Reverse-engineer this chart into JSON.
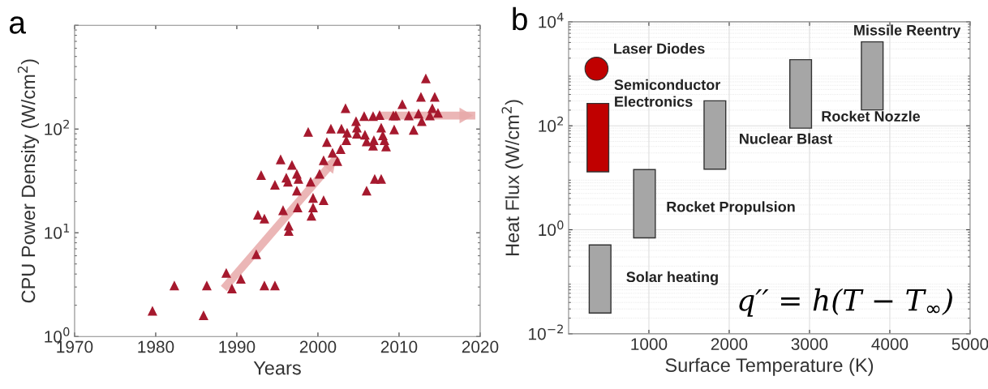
{
  "chart_data": [
    {
      "type": "scatter",
      "title": "a",
      "xlabel": "Years",
      "ylabel": "CPU Power Density (W/cm$^{2}$)",
      "log": "y",
      "grid": false,
      "xlim": [
        1970,
        2020
      ],
      "xticks": [
        1970,
        1980,
        1990,
        2000,
        2010,
        2020
      ],
      "ylim": [
        1,
        1000
      ],
      "yticks": [
        {
          "value": 1,
          "label": "10$^{0}$"
        },
        {
          "value": 10,
          "label": "10$^{1}$"
        },
        {
          "value": 100,
          "label": "10$^{2}$"
        },
        {
          "value": 1000,
          "label": null
        }
      ],
      "series": [
        {
          "marker": "triangle",
          "color": "#a6192e",
          "x": [
            1979.6,
            1982.3,
            1985.9,
            1986.3,
            1988.7,
            1989.4,
            1990.5,
            1992.4,
            1993.4,
            1994.7,
            1992.6,
            1993.4,
            1993.0,
            1994.7,
            1995.4,
            1995.7,
            1996.1,
            1996.3,
            1996.4,
            1996.4,
            1996.8,
            1997.4,
            1997.6,
            1997.4,
            1997.5,
            1998.8,
            1999.1,
            1999.4,
            1999.4,
            1999.2,
            2000.2,
            2000.7,
            2000.7,
            2001.1,
            2001.6,
            2001.8,
            2002.4,
            2002.8,
            2002.9,
            2003.4,
            2003.6,
            2003.5,
            2004.7,
            2004.8,
            2004.8,
            2005.7,
            2005.8,
            2006.0,
            2006.0,
            2006.8,
            2006.9,
            2006.8,
            2007.0,
            2007.6,
            2007.8,
            2008.0,
            2008.2,
            2007.8,
            2008.4,
            2009.3,
            2009.4,
            2009.6,
            2010.4,
            2011.2,
            2011.8,
            2012.4,
            2012.7,
            2012.8,
            2013.3,
            2013.8,
            2014.1,
            2014.4,
            2014.8
          ],
          "values": [
            1.77,
            3.1,
            1.6,
            3.1,
            4.1,
            2.9,
            3.6,
            6.2,
            3.1,
            3.1,
            14.9,
            13.7,
            36,
            29,
            51,
            16.5,
            34,
            31,
            11.7,
            10.4,
            45,
            37,
            33,
            25.5,
            17.5,
            94,
            31,
            21.7,
            17.5,
            14.6,
            37,
            50,
            20.6,
            75,
            101,
            59,
            49,
            64,
            101,
            159,
            92,
            78,
            119,
            103,
            90,
            133,
            88,
            76,
            25.5,
            133,
            78,
            69,
            33,
            136,
            103,
            87,
            78,
            33,
            68,
            135,
            99,
            135,
            174,
            135,
            98,
            141,
            204,
            119,
            307,
            135,
            159,
            204,
            143
          ]
        },
        {
          "type": "line",
          "marker": "none",
          "color": "#e8a9a9",
          "x": [
            1988.4,
            2002.4
          ],
          "values": [
            2.9,
            54
          ]
        },
        {
          "type": "line",
          "marker": "none",
          "color": "#e8a9a9",
          "x": [
            2007.5,
            2019.4
          ],
          "values": [
            135,
            135
          ]
        }
      ]
    },
    {
      "type": "bar",
      "title": "b",
      "xlabel": "Surface Temperature (K)",
      "ylabel": "Heat Flux (W/cm$^{2}$)",
      "log": "y",
      "grid": true,
      "xlim": [
        0,
        5000
      ],
      "xticks": [
        1000,
        2000,
        3000,
        4000,
        5000
      ],
      "ylim": [
        0.01,
        10000
      ],
      "yticks": [
        {
          "value": 0.01,
          "label": "10$^{−2}$"
        },
        {
          "value": 1,
          "label": "10$^{0}$"
        },
        {
          "value": 100,
          "label": "10$^{2}$"
        },
        {
          "value": 10000,
          "label": "10$^{4}$"
        }
      ],
      "series": [
        {
          "x": [
            365,
            392,
            945,
            1822,
            2890,
            3781
          ],
          "base": [
            13,
            0.025,
            0.7,
            14.6,
            90,
            202
          ],
          "values": [
            256,
            0.485,
            13.7,
            287.4,
            1780,
            3908
          ],
          "colors": [
            "#c00000",
            "#a6a6a6",
            "#a6a6a6",
            "#a6a6a6",
            "#a6a6a6",
            "#a6a6a6"
          ]
        },
        {
          "type": "scatter",
          "marker": "circle",
          "color": "#c00000",
          "x": [
            348
          ],
          "values": [
            1250
          ]
        }
      ],
      "annotations": [
        "Laser Diodes",
        "Semiconductor\nElectronics",
        "Solar heating",
        "Rocket Propulsion",
        "Nuclear Blast",
        "Rocket Nozzle",
        "Missile Reentry",
        "q′′ = h(T − T$_{∞}$)"
      ]
    }
  ]
}
